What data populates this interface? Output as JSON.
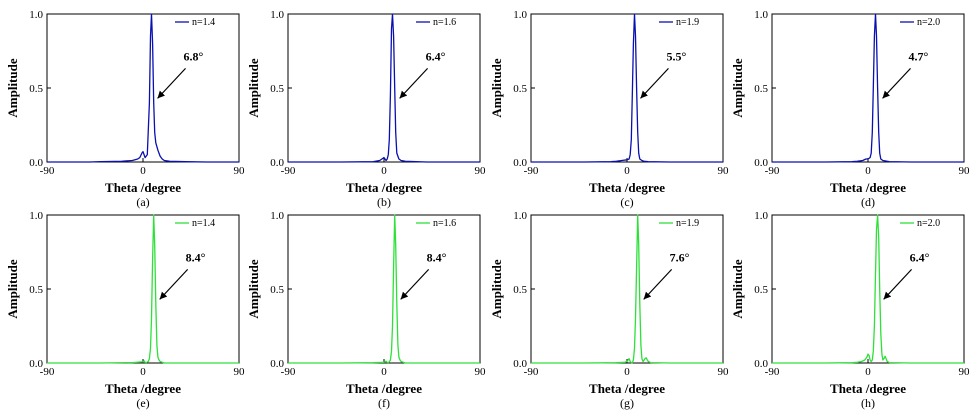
{
  "chart_data": [
    {
      "type": "line",
      "panel_label": "(a)",
      "color": "#0a10b0",
      "xlabel": "Theta /degree",
      "ylabel": "Amplitude",
      "xlim": [
        -90,
        90
      ],
      "ylim": [
        0,
        1
      ],
      "x_ticks": [
        "-90",
        "0",
        "90"
      ],
      "y_ticks": [
        "0.0",
        "0.5",
        "1.0"
      ],
      "legend": {
        "position": "top-right"
      },
      "series": [
        {
          "name": "n=1.4",
          "x": [
            -90,
            -50,
            -40,
            -20,
            -10,
            -5,
            -3,
            -1,
            0,
            2,
            4,
            6,
            7,
            8,
            9,
            10,
            11,
            12,
            14,
            16,
            18,
            20,
            25,
            40,
            60,
            90
          ],
          "y": [
            0,
            0,
            0.003,
            0.005,
            0.01,
            0.02,
            0.03,
            0.06,
            0.07,
            0.03,
            0.05,
            0.4,
            0.85,
            1.0,
            0.8,
            0.4,
            0.2,
            0.13,
            0.08,
            0.04,
            0.02,
            0.01,
            0.005,
            0.002,
            0,
            0
          ]
        }
      ],
      "annotation": {
        "text": "6.8°",
        "x": 8,
        "y": 0.43
      }
    },
    {
      "type": "line",
      "panel_label": "(b)",
      "color": "#0a10b0",
      "xlabel": "Theta /degree",
      "ylabel": "Amplitude",
      "xlim": [
        -90,
        90
      ],
      "ylim": [
        0,
        1
      ],
      "x_ticks": [
        "-90",
        "0",
        "90"
      ],
      "y_ticks": [
        "0.0",
        "0.5",
        "1.0"
      ],
      "legend": {
        "position": "top-right"
      },
      "series": [
        {
          "name": "n=1.6",
          "x": [
            -90,
            -40,
            -10,
            -4,
            -2,
            0,
            2,
            3,
            4,
            5,
            6,
            7,
            8,
            9,
            10,
            11,
            12,
            14,
            16,
            20,
            40,
            90
          ],
          "y": [
            0,
            0,
            0.002,
            0.01,
            0.02,
            0.03,
            0.01,
            0.02,
            0.05,
            0.15,
            0.45,
            0.9,
            1.0,
            0.85,
            0.5,
            0.2,
            0.06,
            0.02,
            0.01,
            0.005,
            0,
            0
          ]
        }
      ],
      "annotation": {
        "text": "6.4°",
        "x": 9,
        "y": 0.43
      }
    },
    {
      "type": "line",
      "panel_label": "(c)",
      "color": "#0a10b0",
      "xlabel": "Theta /degree",
      "ylabel": "Amplitude",
      "xlim": [
        -90,
        90
      ],
      "ylim": [
        0,
        1
      ],
      "x_ticks": [
        "-90",
        "0",
        "90"
      ],
      "y_ticks": [
        "0.0",
        "0.5",
        "1.0"
      ],
      "legend": {
        "position": "top-right"
      },
      "series": [
        {
          "name": "n=1.9",
          "x": [
            -90,
            -40,
            -15,
            -10,
            -5,
            0,
            2,
            3,
            4,
            5,
            6,
            7,
            8,
            9,
            10,
            11,
            12,
            14,
            16,
            20,
            40,
            90
          ],
          "y": [
            0,
            0,
            0.002,
            0.005,
            0.01,
            0.015,
            0.02,
            0.05,
            0.15,
            0.45,
            0.8,
            1.0,
            0.85,
            0.5,
            0.2,
            0.06,
            0.02,
            0.01,
            0.005,
            0.002,
            0,
            0
          ]
        }
      ],
      "annotation": {
        "text": "5.5°",
        "x": 7,
        "y": 0.43
      }
    },
    {
      "type": "line",
      "panel_label": "(d)",
      "color": "#0a10b0",
      "xlabel": "Theta /degree",
      "ylabel": "Amplitude",
      "xlim": [
        -90,
        90
      ],
      "ylim": [
        0,
        1
      ],
      "x_ticks": [
        "-90",
        "0",
        "90"
      ],
      "y_ticks": [
        "0.0",
        "0.5",
        "1.0"
      ],
      "legend": {
        "position": "top-right"
      },
      "series": [
        {
          "name": "n=2.0",
          "x": [
            -90,
            -40,
            -15,
            -10,
            -5,
            -2,
            0,
            2,
            3,
            4,
            5,
            6,
            7,
            8,
            9,
            10,
            11,
            12,
            14,
            20,
            40,
            90
          ],
          "y": [
            0,
            0,
            0.002,
            0.005,
            0.01,
            0.02,
            0.02,
            0.03,
            0.06,
            0.2,
            0.5,
            0.85,
            1.0,
            0.85,
            0.5,
            0.2,
            0.06,
            0.02,
            0.01,
            0.003,
            0,
            0
          ]
        }
      ],
      "annotation": {
        "text": "4.7°",
        "x": 8,
        "y": 0.43
      }
    },
    {
      "type": "line",
      "panel_label": "(e)",
      "color": "#2ee03a",
      "xlabel": "Theta /degree",
      "ylabel": "Amplitude",
      "xlim": [
        -90,
        90
      ],
      "ylim": [
        0,
        1
      ],
      "x_ticks": [
        "-90",
        "0",
        "90"
      ],
      "y_ticks": [
        "0.0",
        "0.5",
        "1.0"
      ],
      "legend": {
        "position": "top-right"
      },
      "series": [
        {
          "name": "n=1.4",
          "x": [
            -90,
            -40,
            -10,
            0,
            1,
            2,
            3,
            5,
            6,
            7,
            8,
            9,
            10,
            11,
            12,
            13,
            14,
            15,
            16,
            18,
            20,
            40,
            90
          ],
          "y": [
            0,
            0,
            0.003,
            0.008,
            0.015,
            0.005,
            0.003,
            0.01,
            0.03,
            0.1,
            0.3,
            0.7,
            1.0,
            0.8,
            0.4,
            0.12,
            0.04,
            0.02,
            0.01,
            0.005,
            0,
            0,
            0
          ]
        }
      ],
      "annotation": {
        "text": "8.4°",
        "x": 10,
        "y": 0.43
      }
    },
    {
      "type": "line",
      "panel_label": "(f)",
      "color": "#2ee03a",
      "xlabel": "Theta /degree",
      "ylabel": "Amplitude",
      "xlim": [
        -90,
        90
      ],
      "ylim": [
        0,
        1
      ],
      "x_ticks": [
        "-90",
        "0",
        "90"
      ],
      "y_ticks": [
        "0.0",
        "0.5",
        "1.0"
      ],
      "legend": {
        "position": "top-right"
      },
      "series": [
        {
          "name": "n=1.6",
          "x": [
            -90,
            -40,
            -10,
            0,
            2,
            3,
            4,
            5,
            6,
            7,
            8,
            9,
            10,
            11,
            12,
            13,
            14,
            15,
            16,
            18,
            20,
            40,
            90
          ],
          "y": [
            0,
            0,
            0.002,
            0.005,
            0.012,
            0.004,
            0.003,
            0.008,
            0.02,
            0.08,
            0.25,
            0.65,
            1.0,
            0.8,
            0.4,
            0.12,
            0.04,
            0.02,
            0.01,
            0.005,
            0,
            0,
            0
          ]
        }
      ],
      "annotation": {
        "text": "8.4°",
        "x": 10,
        "y": 0.43
      }
    },
    {
      "type": "line",
      "panel_label": "(g)",
      "color": "#2ee03a",
      "xlabel": "Theta /degree",
      "ylabel": "Amplitude",
      "xlim": [
        -90,
        90
      ],
      "ylim": [
        0,
        1
      ],
      "x_ticks": [
        "-90",
        "0",
        "90"
      ],
      "y_ticks": [
        "0.0",
        "0.5",
        "1.0"
      ],
      "legend": {
        "position": "top-right"
      },
      "series": [
        {
          "name": "n=1.9",
          "x": [
            -90,
            -40,
            -10,
            -2,
            0,
            1,
            2,
            3,
            4,
            5,
            6,
            7,
            8,
            9,
            10,
            11,
            12,
            13,
            14,
            15,
            16,
            17,
            18,
            19,
            20,
            22,
            40,
            90
          ],
          "y": [
            0,
            0,
            0.002,
            0.005,
            0.01,
            0.02,
            0.03,
            0.01,
            0.002,
            0.002,
            0.02,
            0.1,
            0.3,
            0.65,
            1.0,
            0.8,
            0.4,
            0.12,
            0.03,
            0.01,
            0.02,
            0.03,
            0.035,
            0.02,
            0.01,
            0.003,
            0,
            0
          ]
        }
      ],
      "annotation": {
        "text": "7.6°",
        "x": 10,
        "y": 0.43
      }
    },
    {
      "type": "line",
      "panel_label": "(h)",
      "color": "#2ee03a",
      "xlabel": "Theta /degree",
      "ylabel": "Amplitude",
      "xlim": [
        -90,
        90
      ],
      "ylim": [
        0,
        1
      ],
      "x_ticks": [
        "-90",
        "0",
        "90"
      ],
      "y_ticks": [
        "0.0",
        "0.5",
        "1.0"
      ],
      "legend": {
        "position": "top-right"
      },
      "series": [
        {
          "name": "n=2.0",
          "x": [
            -90,
            -40,
            -15,
            -10,
            -6,
            -3,
            -1,
            0,
            1,
            2,
            3,
            4,
            5,
            6,
            7,
            8,
            9,
            10,
            11,
            12,
            13,
            14,
            15,
            16,
            17,
            18,
            20,
            40,
            90
          ],
          "y": [
            0,
            0,
            0.002,
            0.005,
            0.01,
            0.02,
            0.04,
            0.06,
            0.05,
            0.02,
            0.01,
            0.02,
            0.08,
            0.25,
            0.6,
            0.9,
            1.0,
            0.85,
            0.5,
            0.2,
            0.06,
            0.02,
            0.03,
            0.045,
            0.03,
            0.01,
            0.003,
            0,
            0
          ]
        }
      ],
      "annotation": {
        "text": "6.4°",
        "x": 9,
        "y": 0.43
      }
    }
  ]
}
